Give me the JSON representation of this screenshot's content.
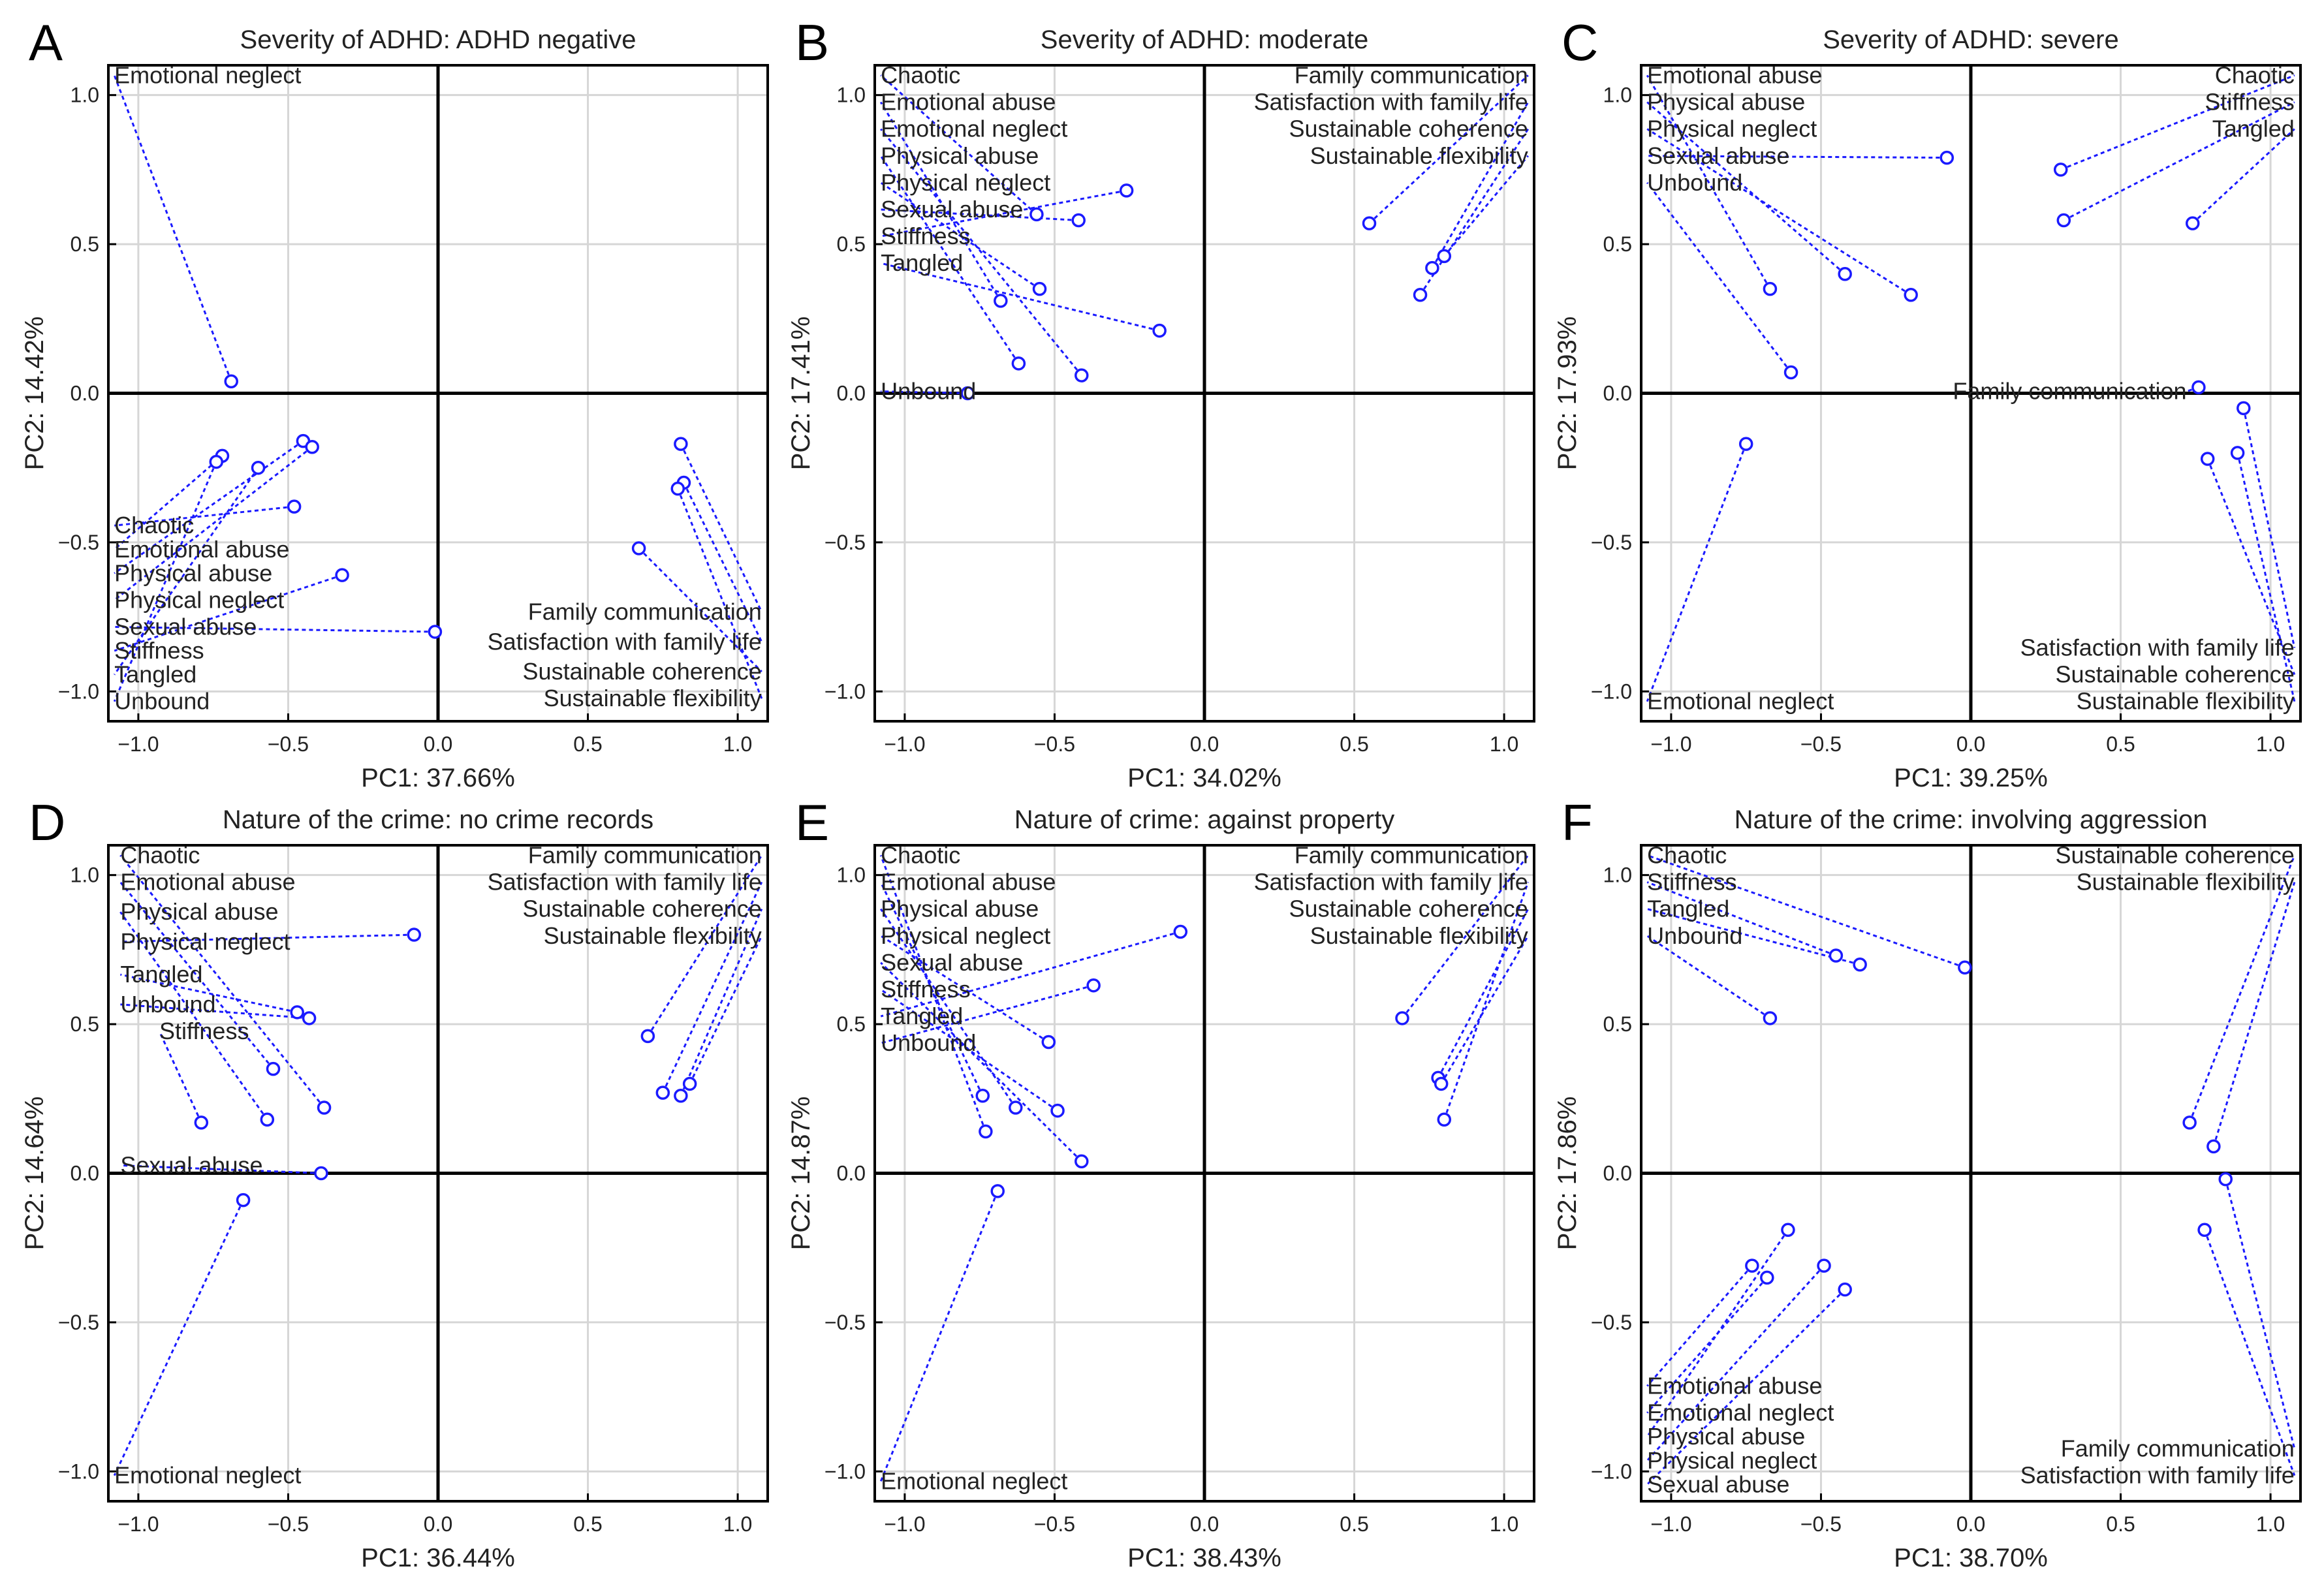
{
  "colors": {
    "series": "#1a1aff",
    "axis": "#000000",
    "grid": "#d6d6d6",
    "text": "#222222"
  },
  "chart_data": [
    {
      "type": "scatter",
      "letter": "A",
      "title": "Severity of ADHD: ADHD negative",
      "xlabel": "PC1: 37.66%",
      "ylabel": "PC2: 14.42%",
      "xlim": [
        -1.1,
        1.1
      ],
      "ylim": [
        -1.1,
        1.1
      ],
      "xticks": [
        -1.0,
        -0.5,
        0.0,
        0.5,
        1.0
      ],
      "xtick_labels": [
        "−1.0",
        "−0.5",
        "0.0",
        "0.5",
        "1.0"
      ],
      "yticks": [
        -1.0,
        -0.5,
        0.0,
        0.5,
        1.0
      ],
      "ytick_labels": [
        "−1.0",
        "−0.5",
        "0.0",
        "0.5",
        "1.0"
      ],
      "points": [
        {
          "label": "Emotional neglect",
          "x": -0.69,
          "y": 0.04,
          "lx": -1.08,
          "ly": 1.04,
          "anchor": "start"
        },
        {
          "label": "Chaotic",
          "x": -0.48,
          "y": -0.38,
          "lx": -1.08,
          "ly": -0.47,
          "anchor": "start"
        },
        {
          "label": "Emotional abuse",
          "x": -0.72,
          "y": -0.21,
          "lx": -1.08,
          "ly": -0.55,
          "anchor": "start"
        },
        {
          "label": "Physical abuse",
          "x": -0.45,
          "y": -0.16,
          "lx": -1.08,
          "ly": -0.63,
          "anchor": "start"
        },
        {
          "label": "Physical neglect",
          "x": -0.42,
          "y": -0.18,
          "lx": -1.08,
          "ly": -0.72,
          "anchor": "start"
        },
        {
          "label": "Sexual abuse",
          "x": -0.01,
          "y": -0.8,
          "lx": -1.08,
          "ly": -0.81,
          "anchor": "start"
        },
        {
          "label": "Stiffness",
          "x": -0.32,
          "y": -0.61,
          "lx": -1.08,
          "ly": -0.89,
          "anchor": "start"
        },
        {
          "label": "Tangled",
          "x": -0.6,
          "y": -0.25,
          "lx": -1.08,
          "ly": -0.97,
          "anchor": "start"
        },
        {
          "label": "Unbound",
          "x": -0.74,
          "y": -0.23,
          "lx": -1.08,
          "ly": -1.06,
          "anchor": "start"
        },
        {
          "label": "Family communication",
          "x": 0.81,
          "y": -0.17,
          "lx": 1.08,
          "ly": -0.76,
          "anchor": "end"
        },
        {
          "label": "Satisfaction with family life",
          "x": 0.82,
          "y": -0.3,
          "lx": 1.08,
          "ly": -0.86,
          "anchor": "end"
        },
        {
          "label": "Sustainable coherence",
          "x": 0.67,
          "y": -0.52,
          "lx": 1.08,
          "ly": -0.96,
          "anchor": "end"
        },
        {
          "label": "Sustainable flexibility",
          "x": 0.8,
          "y": -0.32,
          "lx": 1.08,
          "ly": -1.05,
          "anchor": "end"
        }
      ]
    },
    {
      "type": "scatter",
      "letter": "B",
      "title": "Severity of ADHD: moderate",
      "xlabel": "PC1: 34.02%",
      "ylabel": "PC2: 17.41%",
      "xlim": [
        -1.1,
        1.1
      ],
      "ylim": [
        -1.1,
        1.1
      ],
      "xticks": [
        -1.0,
        -0.5,
        0.0,
        0.5,
        1.0
      ],
      "xtick_labels": [
        "−1.0",
        "−0.5",
        "0.0",
        "0.5",
        "1.0"
      ],
      "yticks": [
        -1.0,
        -0.5,
        0.0,
        0.5,
        1.0
      ],
      "ytick_labels": [
        "−1.0",
        "−0.5",
        "0.0",
        "0.5",
        "1.0"
      ],
      "points": [
        {
          "label": "Chaotic",
          "x": -0.56,
          "y": 0.6,
          "lx": -1.08,
          "ly": 1.04,
          "anchor": "start"
        },
        {
          "label": "Emotional abuse",
          "x": -0.68,
          "y": 0.31,
          "lx": -1.08,
          "ly": 0.95,
          "anchor": "start"
        },
        {
          "label": "Emotional neglect",
          "x": -0.41,
          "y": 0.06,
          "lx": -1.08,
          "ly": 0.86,
          "anchor": "start"
        },
        {
          "label": "Physical abuse",
          "x": -0.62,
          "y": 0.1,
          "lx": -1.08,
          "ly": 0.77,
          "anchor": "start"
        },
        {
          "label": "Physical neglect",
          "x": -0.55,
          "y": 0.35,
          "lx": -1.08,
          "ly": 0.68,
          "anchor": "start"
        },
        {
          "label": "Sexual abuse",
          "x": -0.42,
          "y": 0.58,
          "lx": -1.08,
          "ly": 0.59,
          "anchor": "start"
        },
        {
          "label": "Stiffness",
          "x": -0.26,
          "y": 0.68,
          "lx": -1.08,
          "ly": 0.5,
          "anchor": "start"
        },
        {
          "label": "Tangled",
          "x": -0.15,
          "y": 0.21,
          "lx": -1.08,
          "ly": 0.41,
          "anchor": "start"
        },
        {
          "label": "Unbound",
          "x": -0.79,
          "y": 0.0,
          "lx": -1.08,
          "ly": -0.02,
          "anchor": "start"
        },
        {
          "label": "Family communication",
          "x": 0.55,
          "y": 0.57,
          "lx": 1.08,
          "ly": 1.04,
          "anchor": "end"
        },
        {
          "label": "Satisfaction with family life",
          "x": 0.76,
          "y": 0.42,
          "lx": 1.08,
          "ly": 0.95,
          "anchor": "end"
        },
        {
          "label": "Sustainable coherence",
          "x": 0.72,
          "y": 0.33,
          "lx": 1.08,
          "ly": 0.86,
          "anchor": "end"
        },
        {
          "label": "Sustainable flexibility",
          "x": 0.8,
          "y": 0.46,
          "lx": 1.08,
          "ly": 0.77,
          "anchor": "end"
        }
      ]
    },
    {
      "type": "scatter",
      "letter": "C",
      "title": "Severity of ADHD: severe",
      "xlabel": "PC1: 39.25%",
      "ylabel": "PC2: 17.93%",
      "xlim": [
        -1.1,
        1.1
      ],
      "ylim": [
        -1.1,
        1.1
      ],
      "xticks": [
        -1.0,
        -0.5,
        0.0,
        0.5,
        1.0
      ],
      "xtick_labels": [
        "−1.0",
        "−0.5",
        "0.0",
        "0.5",
        "1.0"
      ],
      "yticks": [
        -1.0,
        -0.5,
        0.0,
        0.5,
        1.0
      ],
      "ytick_labels": [
        "−1.0",
        "−0.5",
        "0.0",
        "0.5",
        "1.0"
      ],
      "points": [
        {
          "label": "Emotional abuse",
          "x": -0.67,
          "y": 0.35,
          "lx": -1.08,
          "ly": 1.04,
          "anchor": "start"
        },
        {
          "label": "Physical abuse",
          "x": -0.42,
          "y": 0.4,
          "lx": -1.08,
          "ly": 0.95,
          "anchor": "start"
        },
        {
          "label": "Physical neglect",
          "x": -0.2,
          "y": 0.33,
          "lx": -1.08,
          "ly": 0.86,
          "anchor": "start"
        },
        {
          "label": "Sexual abuse",
          "x": -0.08,
          "y": 0.79,
          "lx": -1.08,
          "ly": 0.77,
          "anchor": "start"
        },
        {
          "label": "Unbound",
          "x": -0.6,
          "y": 0.07,
          "lx": -1.08,
          "ly": 0.68,
          "anchor": "start"
        },
        {
          "label": "Chaotic",
          "x": 0.3,
          "y": 0.75,
          "lx": 1.08,
          "ly": 1.04,
          "anchor": "end"
        },
        {
          "label": "Stiffness",
          "x": 0.31,
          "y": 0.58,
          "lx": 1.08,
          "ly": 0.95,
          "anchor": "end"
        },
        {
          "label": "Tangled",
          "x": 0.74,
          "y": 0.57,
          "lx": 1.08,
          "ly": 0.86,
          "anchor": "end"
        },
        {
          "label": "Family communication",
          "x": 0.76,
          "y": 0.02,
          "lx": 0.72,
          "ly": -0.02,
          "anchor": "end"
        },
        {
          "label": "Emotional neglect",
          "x": -0.75,
          "y": -0.17,
          "lx": -1.08,
          "ly": -1.06,
          "anchor": "start"
        },
        {
          "label": "Satisfaction with family life",
          "x": 0.91,
          "y": -0.05,
          "lx": 1.08,
          "ly": -0.88,
          "anchor": "end"
        },
        {
          "label": "Sustainable coherence",
          "x": 0.79,
          "y": -0.22,
          "lx": 1.08,
          "ly": -0.97,
          "anchor": "end"
        },
        {
          "label": "Sustainable flexibility",
          "x": 0.89,
          "y": -0.2,
          "lx": 1.08,
          "ly": -1.06,
          "anchor": "end"
        }
      ]
    },
    {
      "type": "scatter",
      "letter": "D",
      "title": "Nature of the crime: no crime records",
      "xlabel": "PC1: 36.44%",
      "ylabel": "PC2: 14.64%",
      "xlim": [
        -1.1,
        1.1
      ],
      "ylim": [
        -1.1,
        1.1
      ],
      "xticks": [
        -1.0,
        -0.5,
        0.0,
        0.5,
        1.0
      ],
      "xtick_labels": [
        "−1.0",
        "−0.5",
        "0.0",
        "0.5",
        "1.0"
      ],
      "yticks": [
        -1.0,
        -0.5,
        0.0,
        0.5,
        1.0
      ],
      "ytick_labels": [
        "−1.0",
        "−0.5",
        "0.0",
        "0.5",
        "1.0"
      ],
      "points": [
        {
          "label": "Chaotic",
          "x": -0.38,
          "y": 0.22,
          "lx": -1.06,
          "ly": 1.04,
          "anchor": "start"
        },
        {
          "label": "Emotional abuse",
          "x": -0.55,
          "y": 0.35,
          "lx": -1.06,
          "ly": 0.95,
          "anchor": "start"
        },
        {
          "label": "Physical abuse",
          "x": -0.57,
          "y": 0.18,
          "lx": -1.06,
          "ly": 0.85,
          "anchor": "start"
        },
        {
          "label": "Physical neglect",
          "x": -0.08,
          "y": 0.8,
          "lx": -1.06,
          "ly": 0.75,
          "anchor": "start"
        },
        {
          "label": "Tangled",
          "x": -0.47,
          "y": 0.54,
          "lx": -1.06,
          "ly": 0.64,
          "anchor": "start"
        },
        {
          "label": "Unbound",
          "x": -0.43,
          "y": 0.52,
          "lx": -1.06,
          "ly": 0.54,
          "anchor": "start"
        },
        {
          "label": "Stiffness",
          "x": -0.79,
          "y": 0.17,
          "lx": -0.93,
          "ly": 0.45,
          "anchor": "start"
        },
        {
          "label": "Sexual abuse",
          "x": -0.39,
          "y": 0.0,
          "lx": -1.06,
          "ly": 0.0,
          "anchor": "start"
        },
        {
          "label": "Emotional neglect",
          "x": -0.65,
          "y": -0.09,
          "lx": -1.08,
          "ly": -1.04,
          "anchor": "start"
        },
        {
          "label": "Family communication",
          "x": 0.7,
          "y": 0.46,
          "lx": 1.08,
          "ly": 1.04,
          "anchor": "end"
        },
        {
          "label": "Satisfaction with family life",
          "x": 0.75,
          "y": 0.27,
          "lx": 1.08,
          "ly": 0.95,
          "anchor": "end"
        },
        {
          "label": "Sustainable coherence",
          "x": 0.81,
          "y": 0.26,
          "lx": 1.08,
          "ly": 0.86,
          "anchor": "end"
        },
        {
          "label": "Sustainable flexibility",
          "x": 0.84,
          "y": 0.3,
          "lx": 1.08,
          "ly": 0.77,
          "anchor": "end"
        }
      ]
    },
    {
      "type": "scatter",
      "letter": "E",
      "title": "Nature of crime: against property",
      "xlabel": "PC1: 38.43%",
      "ylabel": "PC2: 14.87%",
      "xlim": [
        -1.1,
        1.1
      ],
      "ylim": [
        -1.1,
        1.1
      ],
      "xticks": [
        -1.0,
        -0.5,
        0.0,
        0.5,
        1.0
      ],
      "xtick_labels": [
        "−1.0",
        "−0.5",
        "0.0",
        "0.5",
        "1.0"
      ],
      "yticks": [
        -1.0,
        -0.5,
        0.0,
        0.5,
        1.0
      ],
      "ytick_labels": [
        "−1.0",
        "−0.5",
        "0.0",
        "0.5",
        "1.0"
      ],
      "points": [
        {
          "label": "Chaotic",
          "x": -0.73,
          "y": 0.14,
          "lx": -1.08,
          "ly": 1.04,
          "anchor": "start"
        },
        {
          "label": "Emotional abuse",
          "x": -0.74,
          "y": 0.26,
          "lx": -1.08,
          "ly": 0.95,
          "anchor": "start"
        },
        {
          "label": "Physical abuse",
          "x": -0.63,
          "y": 0.22,
          "lx": -1.08,
          "ly": 0.86,
          "anchor": "start"
        },
        {
          "label": "Physical neglect",
          "x": -0.52,
          "y": 0.44,
          "lx": -1.08,
          "ly": 0.77,
          "anchor": "start"
        },
        {
          "label": "Sexual abuse",
          "x": -0.41,
          "y": 0.04,
          "lx": -1.08,
          "ly": 0.68,
          "anchor": "start"
        },
        {
          "label": "Stiffness",
          "x": -0.49,
          "y": 0.21,
          "lx": -1.08,
          "ly": 0.59,
          "anchor": "start"
        },
        {
          "label": "Tangled",
          "x": -0.08,
          "y": 0.81,
          "lx": -1.08,
          "ly": 0.5,
          "anchor": "start"
        },
        {
          "label": "Unbound",
          "x": -0.37,
          "y": 0.63,
          "lx": -1.08,
          "ly": 0.41,
          "anchor": "start"
        },
        {
          "label": "Emotional neglect",
          "x": -0.69,
          "y": -0.06,
          "lx": -1.08,
          "ly": -1.06,
          "anchor": "start"
        },
        {
          "label": "Family communication",
          "x": 0.66,
          "y": 0.52,
          "lx": 1.08,
          "ly": 1.04,
          "anchor": "end"
        },
        {
          "label": "Satisfaction with family life",
          "x": 0.8,
          "y": 0.18,
          "lx": 1.08,
          "ly": 0.95,
          "anchor": "end"
        },
        {
          "label": "Sustainable coherence",
          "x": 0.78,
          "y": 0.32,
          "lx": 1.08,
          "ly": 0.86,
          "anchor": "end"
        },
        {
          "label": "Sustainable flexibility",
          "x": 0.79,
          "y": 0.3,
          "lx": 1.08,
          "ly": 0.77,
          "anchor": "end"
        }
      ]
    },
    {
      "type": "scatter",
      "letter": "F",
      "title": "Nature of the crime: involving aggression",
      "xlabel": "PC1: 38.70%",
      "ylabel": "PC2: 17.86%",
      "xlim": [
        -1.1,
        1.1
      ],
      "ylim": [
        -1.1,
        1.1
      ],
      "xticks": [
        -1.0,
        -0.5,
        0.0,
        0.5,
        1.0
      ],
      "xtick_labels": [
        "−1.0",
        "−0.5",
        "0.0",
        "0.5",
        "1.0"
      ],
      "yticks": [
        -1.0,
        -0.5,
        0.0,
        0.5,
        1.0
      ],
      "ytick_labels": [
        "−1.0",
        "−0.5",
        "0.0",
        "0.5",
        "1.0"
      ],
      "points": [
        {
          "label": "Chaotic",
          "x": -0.02,
          "y": 0.69,
          "lx": -1.08,
          "ly": 1.04,
          "anchor": "start"
        },
        {
          "label": "Stiffness",
          "x": -0.45,
          "y": 0.73,
          "lx": -1.08,
          "ly": 0.95,
          "anchor": "start"
        },
        {
          "label": "Tangled",
          "x": -0.37,
          "y": 0.7,
          "lx": -1.08,
          "ly": 0.86,
          "anchor": "start"
        },
        {
          "label": "Unbound",
          "x": -0.67,
          "y": 0.52,
          "lx": -1.08,
          "ly": 0.77,
          "anchor": "start"
        },
        {
          "label": "Sustainable coherence",
          "x": 0.73,
          "y": 0.17,
          "lx": 1.08,
          "ly": 1.04,
          "anchor": "end"
        },
        {
          "label": "Sustainable flexibility",
          "x": 0.81,
          "y": 0.09,
          "lx": 1.08,
          "ly": 0.95,
          "anchor": "end"
        },
        {
          "label": "Emotional abuse",
          "x": -0.73,
          "y": -0.31,
          "lx": -1.08,
          "ly": -0.74,
          "anchor": "start"
        },
        {
          "label": "Emotional neglect",
          "x": -0.68,
          "y": -0.35,
          "lx": -1.08,
          "ly": -0.83,
          "anchor": "start"
        },
        {
          "label": "Physical abuse",
          "x": -0.61,
          "y": -0.19,
          "lx": -1.08,
          "ly": -0.91,
          "anchor": "start"
        },
        {
          "label": "Physical neglect",
          "x": -0.49,
          "y": -0.31,
          "lx": -1.08,
          "ly": -0.99,
          "anchor": "start"
        },
        {
          "label": "Sexual abuse",
          "x": -0.42,
          "y": -0.39,
          "lx": -1.08,
          "ly": -1.07,
          "anchor": "start"
        },
        {
          "label": "Family communication",
          "x": 0.85,
          "y": -0.02,
          "lx": 1.08,
          "ly": -0.95,
          "anchor": "end"
        },
        {
          "label": "Satisfaction with family life",
          "x": 0.78,
          "y": -0.19,
          "lx": 1.08,
          "ly": -1.04,
          "anchor": "end"
        }
      ]
    }
  ]
}
